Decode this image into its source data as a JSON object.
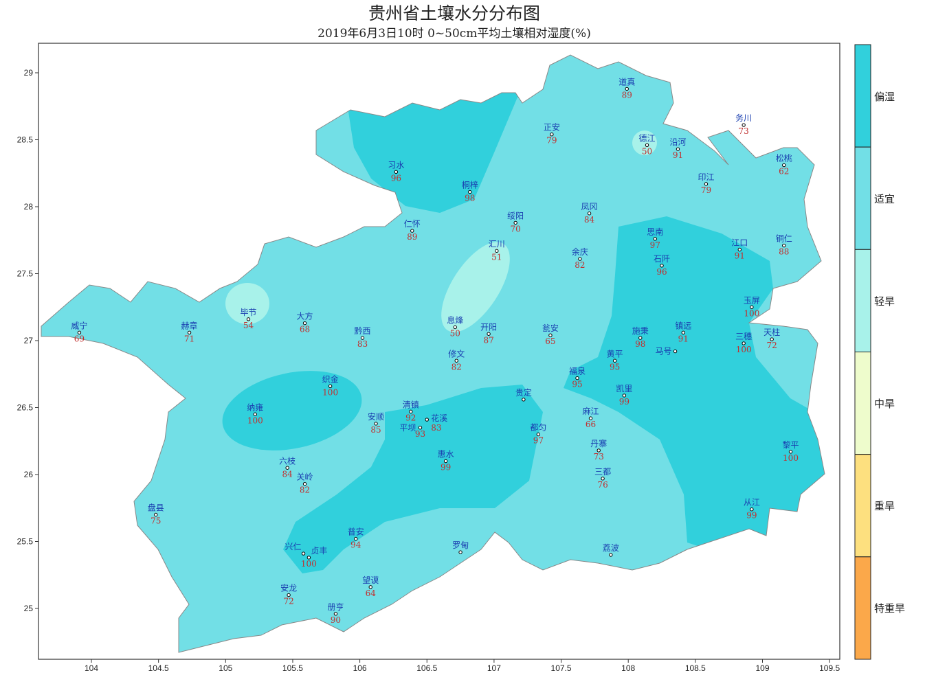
{
  "title": "贵州省土壤水分分布图",
  "subtitle": "2019年6月3日10时 0~50cm平均土壤相对湿度(%)",
  "axes": {
    "x_ticks": [
      "104",
      "104.5",
      "105",
      "105.5",
      "106",
      "106.5",
      "107",
      "107.5",
      "108",
      "108.5",
      "109",
      "109.5"
    ],
    "y_ticks": [
      "25",
      "25.5",
      "26",
      "26.5",
      "27",
      "27.5",
      "28",
      "28.5",
      "29"
    ],
    "lon_range": [
      103.6,
      109.6
    ],
    "lat_range": [
      24.6,
      29.22
    ]
  },
  "legend": [
    {
      "label": "偏湿",
      "color": "#31d0dc"
    },
    {
      "label": "适宜",
      "color": "#72dfe6"
    },
    {
      "label": "轻旱",
      "color": "#a8f2ea"
    },
    {
      "label": "中旱",
      "color": "#eefccc"
    },
    {
      "label": "重旱",
      "color": "#fde07f"
    },
    {
      "label": "特重旱",
      "color": "#fba84a"
    }
  ],
  "colors": {
    "name": "#1a3fb0",
    "value": "#c0302f"
  },
  "stations": [
    {
      "name": "道真",
      "value": "89",
      "lon": 107.99,
      "lat": 28.88
    },
    {
      "name": "务川",
      "value": "73",
      "lon": 108.86,
      "lat": 28.61
    },
    {
      "name": "正安",
      "value": "79",
      "lon": 107.43,
      "lat": 28.54
    },
    {
      "name": "德江",
      "value": "50",
      "lon": 108.14,
      "lat": 28.46
    },
    {
      "name": "沿河",
      "value": "91",
      "lon": 108.37,
      "lat": 28.43
    },
    {
      "name": "印江",
      "value": "79",
      "lon": 108.58,
      "lat": 28.17
    },
    {
      "name": "松桃",
      "value": "62",
      "lon": 109.16,
      "lat": 28.31
    },
    {
      "name": "习水",
      "value": "96",
      "lon": 106.27,
      "lat": 28.26
    },
    {
      "name": "桐梓",
      "value": "98",
      "lon": 106.82,
      "lat": 28.11
    },
    {
      "name": "绥阳",
      "value": "70",
      "lon": 107.16,
      "lat": 27.88
    },
    {
      "name": "凤冈",
      "value": "84",
      "lon": 107.71,
      "lat": 27.95
    },
    {
      "name": "仁怀",
      "value": "89",
      "lon": 106.39,
      "lat": 27.82
    },
    {
      "name": "汇川",
      "value": "51",
      "lon": 107.02,
      "lat": 27.67
    },
    {
      "name": "余庆",
      "value": "82",
      "lon": 107.64,
      "lat": 27.61
    },
    {
      "name": "思南",
      "value": "97",
      "lon": 108.2,
      "lat": 27.76
    },
    {
      "name": "石阡",
      "value": "96",
      "lon": 108.25,
      "lat": 27.56
    },
    {
      "name": "江口",
      "value": "91",
      "lon": 108.83,
      "lat": 27.68
    },
    {
      "name": "铜仁",
      "value": "88",
      "lon": 109.16,
      "lat": 27.71
    },
    {
      "name": "玉屏",
      "value": "100",
      "lon": 108.92,
      "lat": 27.25
    },
    {
      "name": "毕节",
      "value": "54",
      "lon": 105.17,
      "lat": 27.16
    },
    {
      "name": "威宁",
      "value": "69",
      "lon": 103.91,
      "lat": 27.06
    },
    {
      "name": "赫章",
      "value": "71",
      "lon": 104.73,
      "lat": 27.06
    },
    {
      "name": "大方",
      "value": "68",
      "lon": 105.59,
      "lat": 27.13
    },
    {
      "name": "黔西",
      "value": "83",
      "lon": 106.02,
      "lat": 27.02
    },
    {
      "name": "息烽",
      "value": "50",
      "lon": 106.71,
      "lat": 27.1
    },
    {
      "name": "开阳",
      "value": "87",
      "lon": 106.96,
      "lat": 27.05
    },
    {
      "name": "瓮安",
      "value": "65",
      "lon": 107.42,
      "lat": 27.04
    },
    {
      "name": "施秉",
      "value": "98",
      "lon": 108.09,
      "lat": 27.02
    },
    {
      "name": "镇远",
      "value": "91",
      "lon": 108.41,
      "lat": 27.06
    },
    {
      "name": "马号",
      "value": null,
      "lon": 108.35,
      "lat": 26.92
    },
    {
      "name": "三穗",
      "value": "100",
      "lon": 108.86,
      "lat": 26.98
    },
    {
      "name": "天柱",
      "value": "72",
      "lon": 109.07,
      "lat": 27.01
    },
    {
      "name": "修文",
      "value": "82",
      "lon": 106.72,
      "lat": 26.85
    },
    {
      "name": "黄平",
      "value": "95",
      "lon": 107.9,
      "lat": 26.85
    },
    {
      "name": "织金",
      "value": "100",
      "lon": 105.78,
      "lat": 26.66
    },
    {
      "name": "福泉",
      "value": "95",
      "lon": 107.62,
      "lat": 26.72
    },
    {
      "name": "凯里",
      "value": "99",
      "lon": 107.97,
      "lat": 26.59
    },
    {
      "name": "贵定",
      "value": null,
      "lon": 107.22,
      "lat": 26.56
    },
    {
      "name": "纳雍",
      "value": "100",
      "lon": 105.22,
      "lat": 26.45
    },
    {
      "name": "安顺",
      "value": "85",
      "lon": 106.12,
      "lat": 26.38
    },
    {
      "name": "清镇",
      "value": "92",
      "lon": 106.38,
      "lat": 26.47
    },
    {
      "name": "平坝",
      "value": "93",
      "lon": 106.45,
      "lat": 26.35
    },
    {
      "name": "花溪",
      "value": "83",
      "lon": 106.5,
      "lat": 26.41
    },
    {
      "name": "麻江",
      "value": "66",
      "lon": 107.72,
      "lat": 26.42
    },
    {
      "name": "都匀",
      "value": "97",
      "lon": 107.33,
      "lat": 26.3
    },
    {
      "name": "丹寨",
      "value": "73",
      "lon": 107.78,
      "lat": 26.18
    },
    {
      "name": "惠水",
      "value": "99",
      "lon": 106.64,
      "lat": 26.1
    },
    {
      "name": "六枝",
      "value": "84",
      "lon": 105.46,
      "lat": 26.05
    },
    {
      "name": "关岭",
      "value": "82",
      "lon": 105.59,
      "lat": 25.93
    },
    {
      "name": "三都",
      "value": "76",
      "lon": 107.81,
      "lat": 25.97
    },
    {
      "name": "黎平",
      "value": "100",
      "lon": 109.21,
      "lat": 26.17
    },
    {
      "name": "盘县",
      "value": "75",
      "lon": 104.48,
      "lat": 25.7
    },
    {
      "name": "从江",
      "value": "99",
      "lon": 108.92,
      "lat": 25.74
    },
    {
      "name": "普安",
      "value": "94",
      "lon": 105.97,
      "lat": 25.52
    },
    {
      "name": "罗甸",
      "value": null,
      "lon": 106.75,
      "lat": 25.42
    },
    {
      "name": "荔波",
      "value": null,
      "lon": 107.87,
      "lat": 25.4
    },
    {
      "name": "兴仁",
      "value": null,
      "lon": 105.58,
      "lat": 25.41
    },
    {
      "name": "贞丰",
      "value": "100",
      "lon": 105.62,
      "lat": 25.38
    },
    {
      "name": "安龙",
      "value": "72",
      "lon": 105.47,
      "lat": 25.1
    },
    {
      "name": "望谟",
      "value": "64",
      "lon": 106.08,
      "lat": 25.16
    },
    {
      "name": "册亨",
      "value": "90",
      "lon": 105.82,
      "lat": 24.96
    }
  ]
}
